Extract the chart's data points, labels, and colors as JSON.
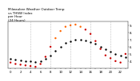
{
  "title": "Milwaukee Weather Outdoor Temp\nvs THSW Index\nper Hour\n(24 Hours)",
  "hours": [
    0,
    1,
    2,
    3,
    4,
    5,
    6,
    7,
    8,
    9,
    10,
    11,
    12,
    13,
    14,
    15,
    16,
    17,
    18,
    19,
    20,
    21,
    22,
    23
  ],
  "temp": [
    43,
    42,
    41,
    40,
    40,
    39,
    40,
    43,
    48,
    54,
    60,
    65,
    68,
    70,
    70,
    69,
    67,
    64,
    60,
    56,
    53,
    50,
    48,
    46
  ],
  "thsw": [
    38,
    36,
    35,
    34,
    33,
    32,
    36,
    46,
    60,
    72,
    82,
    88,
    90,
    91,
    88,
    84,
    78,
    68,
    57,
    48,
    44,
    40,
    38,
    50
  ],
  "temp_color": "#000000",
  "thsw_color": "#ff6600",
  "thsw_color2": "#cc0000",
  "bg_color": "#ffffff",
  "grid_color": "#888888",
  "ylim": [
    30,
    95
  ],
  "ytick_positions": [
    40,
    50,
    60,
    70,
    80,
    90
  ],
  "ytick_labels": [
    "4.",
    "5.",
    "6.",
    "7.",
    "8.",
    "9."
  ],
  "vgrid_positions": [
    4,
    8,
    12,
    16,
    20
  ],
  "marker_size": 3.0
}
